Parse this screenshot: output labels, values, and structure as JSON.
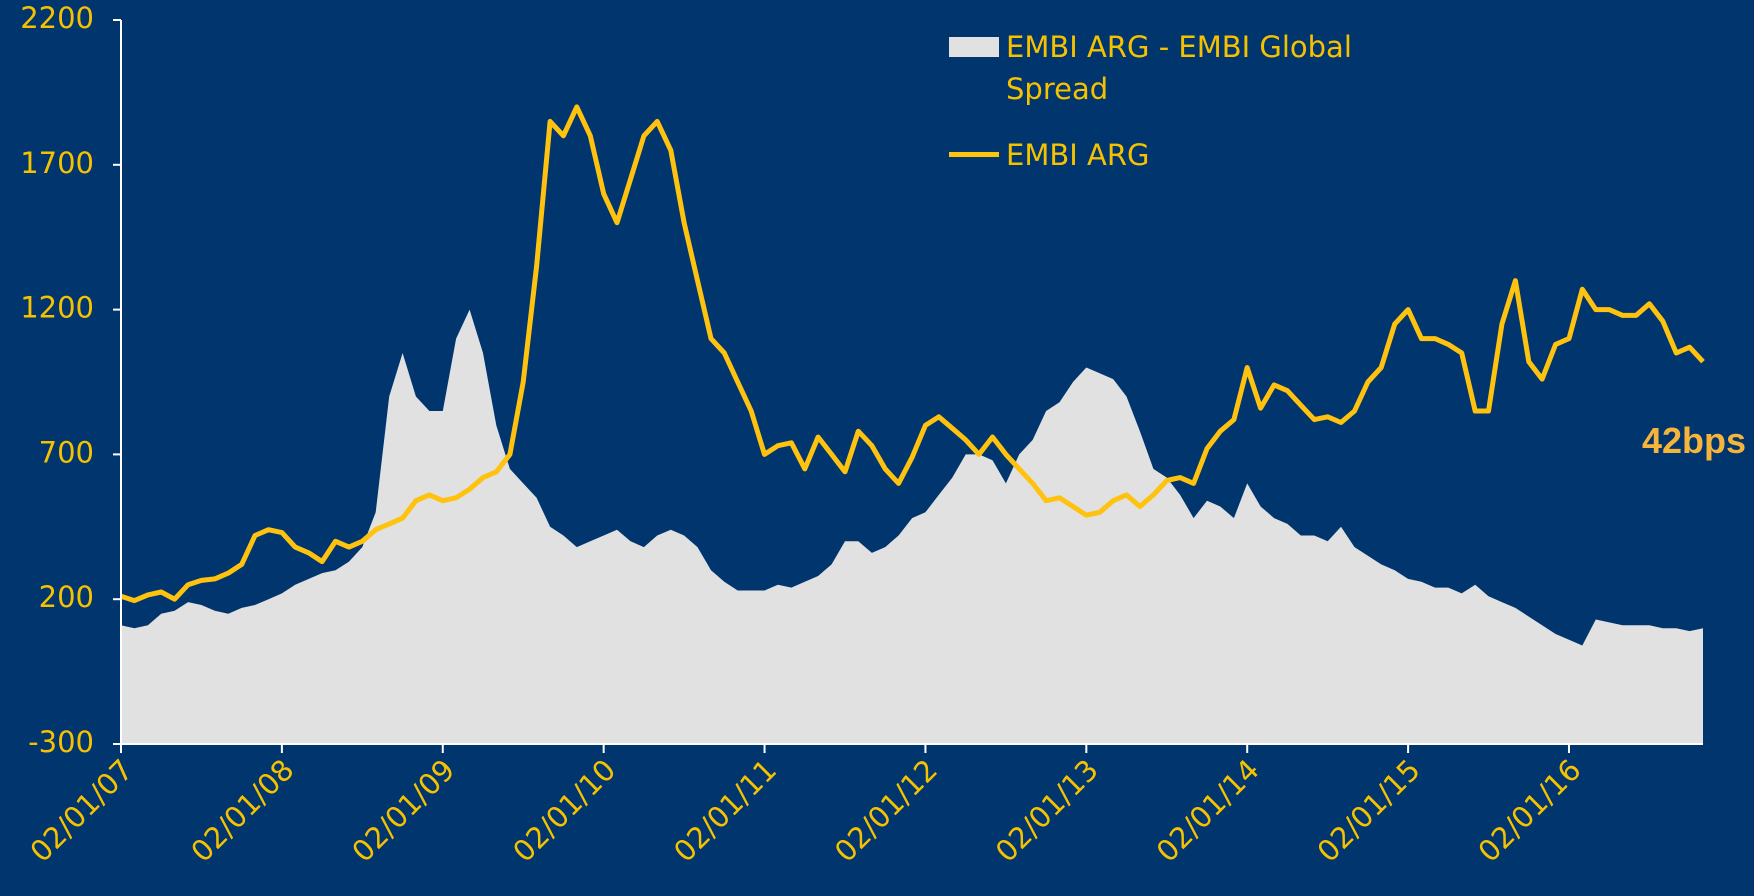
{
  "chart_data": {
    "type": "line-area",
    "annotation": "42bps",
    "x": [
      2007,
      2007.083,
      2007.167,
      2007.25,
      2007.333,
      2007.417,
      2007.5,
      2007.583,
      2007.667,
      2007.75,
      2007.833,
      2007.917,
      2008,
      2008.083,
      2008.167,
      2008.25,
      2008.333,
      2008.417,
      2008.5,
      2008.583,
      2008.667,
      2008.75,
      2008.833,
      2008.917,
      2009,
      2009.083,
      2009.167,
      2009.25,
      2009.333,
      2009.417,
      2009.5,
      2009.583,
      2009.667,
      2009.75,
      2009.833,
      2009.917,
      2010,
      2010.083,
      2010.167,
      2010.25,
      2010.333,
      2010.417,
      2010.5,
      2010.583,
      2010.667,
      2010.75,
      2010.833,
      2010.917,
      2011,
      2011.083,
      2011.167,
      2011.25,
      2011.333,
      2011.417,
      2011.5,
      2011.583,
      2011.667,
      2011.75,
      2011.833,
      2011.917,
      2012,
      2012.083,
      2012.167,
      2012.25,
      2012.333,
      2012.417,
      2012.5,
      2012.583,
      2012.667,
      2012.75,
      2012.833,
      2012.917,
      2013,
      2013.083,
      2013.167,
      2013.25,
      2013.333,
      2013.417,
      2013.5,
      2013.583,
      2013.667,
      2013.75,
      2013.833,
      2013.917,
      2014,
      2014.083,
      2014.167,
      2014.25,
      2014.333,
      2014.417,
      2014.5,
      2014.583,
      2014.667,
      2014.75,
      2014.833,
      2014.917,
      2015,
      2015.083,
      2015.167,
      2015.25,
      2015.333,
      2015.417,
      2015.5,
      2015.583,
      2015.667,
      2015.75,
      2015.833,
      2015.917,
      2016,
      2016.083,
      2016.167,
      2016.25,
      2016.333,
      2016.417,
      2016.5,
      2016.583,
      2016.667,
      2016.75,
      2016.833
    ],
    "series": [
      {
        "name": "EMBI ARG - EMBI Global Spread",
        "kind": "area",
        "color": "#e1e1e1",
        "values": [
          110,
          100,
          110,
          150,
          160,
          190,
          180,
          160,
          150,
          170,
          180,
          200,
          220,
          250,
          270,
          290,
          300,
          330,
          380,
          500,
          900,
          1050,
          900,
          850,
          850,
          1100,
          1200,
          1050,
          800,
          650,
          600,
          550,
          450,
          420,
          380,
          400,
          420,
          440,
          400,
          380,
          420,
          440,
          420,
          380,
          300,
          260,
          230,
          230,
          230,
          250,
          240,
          260,
          280,
          320,
          400,
          400,
          360,
          380,
          420,
          480,
          500,
          560,
          620,
          700,
          700,
          680,
          600,
          700,
          750,
          850,
          880,
          950,
          1000,
          980,
          960,
          900,
          780,
          650,
          620,
          560,
          480,
          540,
          520,
          480,
          600,
          520,
          480,
          460,
          420,
          420,
          400,
          450,
          380,
          350,
          320,
          300,
          270,
          260,
          240,
          240,
          220,
          250,
          210,
          190,
          170,
          140,
          110,
          80,
          60,
          40,
          130,
          120,
          110,
          110,
          110,
          100,
          100,
          90,
          100
        ]
      },
      {
        "name": "EMBI ARG",
        "kind": "line",
        "color": "#ffc20e",
        "values": [
          210,
          195,
          215,
          225,
          200,
          250,
          265,
          270,
          290,
          320,
          420,
          440,
          430,
          380,
          360,
          330,
          400,
          380,
          400,
          440,
          460,
          480,
          540,
          560,
          540,
          550,
          580,
          620,
          640,
          700,
          950,
          1350,
          1850,
          1800,
          1900,
          1800,
          1600,
          1500,
          1650,
          1800,
          1850,
          1750,
          1500,
          1300,
          1100,
          1050,
          950,
          850,
          700,
          730,
          740,
          650,
          760,
          700,
          640,
          780,
          730,
          650,
          600,
          690,
          800,
          830,
          790,
          750,
          700,
          760,
          700,
          650,
          600,
          540,
          550,
          520,
          490,
          500,
          540,
          560,
          520,
          560,
          610,
          620,
          600,
          720,
          780,
          820,
          1000,
          860,
          940,
          920,
          870,
          820,
          830,
          810,
          850,
          950,
          1000,
          1150,
          1200,
          1100,
          1100,
          1080,
          1050,
          850,
          850,
          1150,
          1300,
          1020,
          960,
          1080,
          1100,
          1270,
          1200,
          1200,
          1180,
          1180,
          1220,
          1160,
          1050,
          1070,
          1020
        ]
      }
    ],
    "xlim": [
      2007,
      2016.833
    ],
    "xticks": [
      {
        "value": 2007,
        "label": "02/01/07"
      },
      {
        "value": 2008,
        "label": "02/01/08"
      },
      {
        "value": 2009,
        "label": "02/01/09"
      },
      {
        "value": 2010,
        "label": "02/01/10"
      },
      {
        "value": 2011,
        "label": "02/01/11"
      },
      {
        "value": 2012,
        "label": "02/01/12"
      },
      {
        "value": 2013,
        "label": "02/01/13"
      },
      {
        "value": 2014,
        "label": "02/01/14"
      },
      {
        "value": 2015,
        "label": "02/01/15"
      },
      {
        "value": 2016,
        "label": "02/01/16"
      }
    ],
    "ylim": [
      -300,
      2200
    ],
    "yticks": [
      -300,
      200,
      700,
      1200,
      1700,
      2200
    ]
  }
}
